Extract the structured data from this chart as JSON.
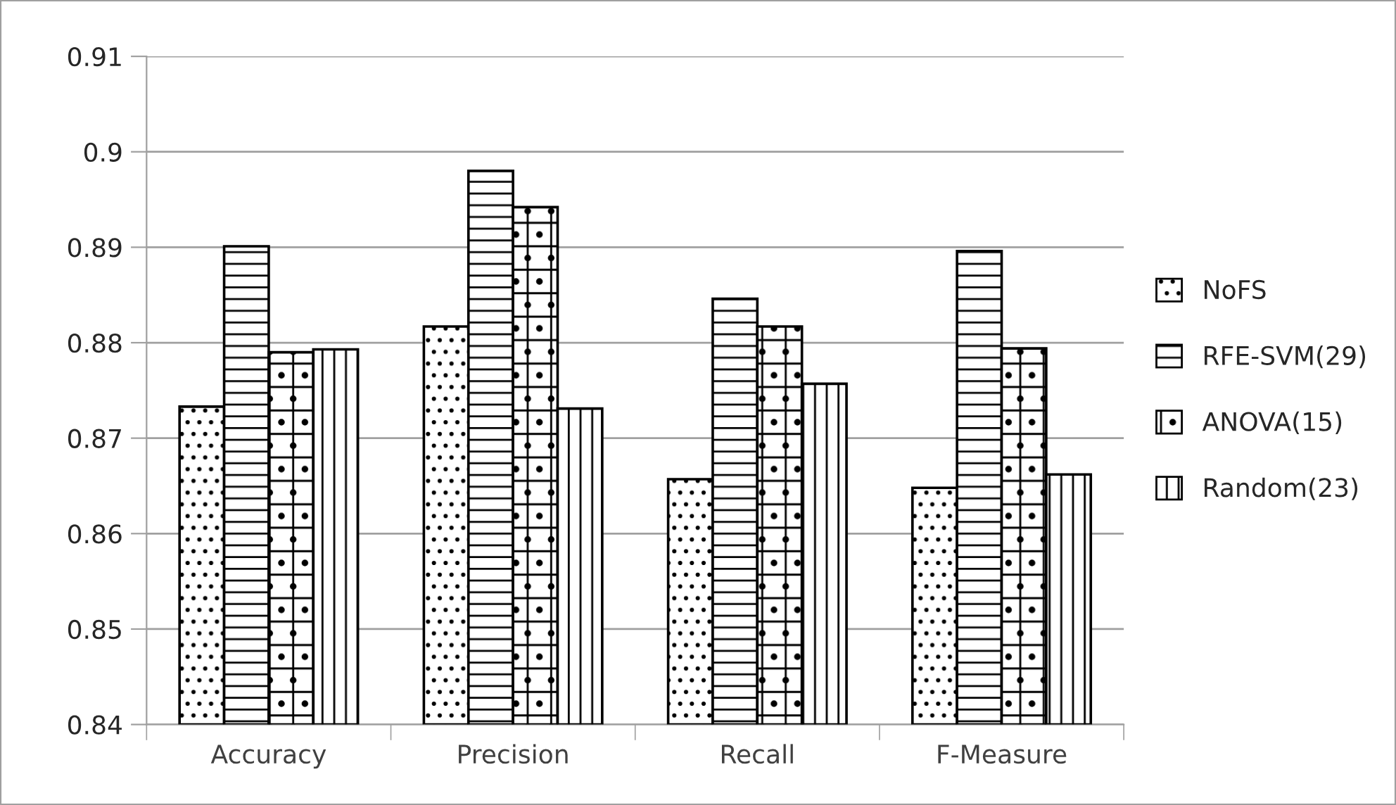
{
  "chart_data": {
    "type": "bar",
    "categories": [
      "Accuracy",
      "Precision",
      "Recall",
      "F-Measure"
    ],
    "series": [
      {
        "name": "NoFS",
        "color": "#000000",
        "values": [
          0.8733,
          0.8817,
          0.8657,
          0.8648
        ]
      },
      {
        "name": "RFE-SVM(29)",
        "color": "#000000",
        "values": [
          0.8901,
          0.898,
          0.8846,
          0.8896
        ]
      },
      {
        "name": "ANOVA(15)",
        "color": "#000000",
        "values": [
          0.879,
          0.8942,
          0.8817,
          0.8794
        ]
      },
      {
        "name": "Random(23)",
        "color": "#000000",
        "values": [
          0.8793,
          0.8731,
          0.8757,
          0.8662
        ]
      }
    ],
    "ylim": [
      0.84,
      0.91
    ],
    "yticks": [
      0.84,
      0.85,
      0.86,
      0.87,
      0.88,
      0.89,
      0.9,
      0.91
    ],
    "grid": "y",
    "legend": "right"
  }
}
